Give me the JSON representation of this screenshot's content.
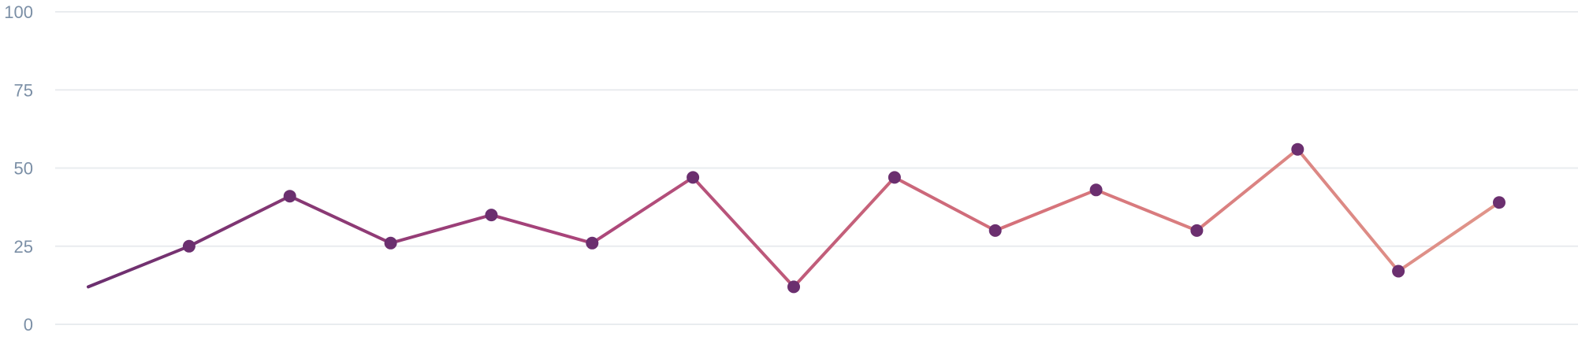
{
  "chart_data": {
    "type": "line",
    "title": "",
    "xlabel": "",
    "ylabel": "",
    "ylim": [
      0,
      100
    ],
    "y_ticks": [
      "0",
      "25",
      "50",
      "75",
      "100"
    ],
    "x": [
      0,
      1,
      2,
      3,
      4,
      5,
      6,
      7,
      8,
      9,
      10,
      11,
      12,
      13,
      14
    ],
    "values": [
      12,
      25,
      41,
      26,
      35,
      26,
      47,
      12,
      47,
      30,
      43,
      30,
      56,
      17,
      39
    ],
    "markers_on_first_point": false,
    "grid": true,
    "gradient_colors": [
      "#6b2f6f",
      "#a8437a",
      "#d6727a",
      "#e0958a"
    ],
    "marker_color": "#6b2f6f",
    "gridline_color": "#e9ecef",
    "tick_label_color": "#7b8fa6"
  }
}
